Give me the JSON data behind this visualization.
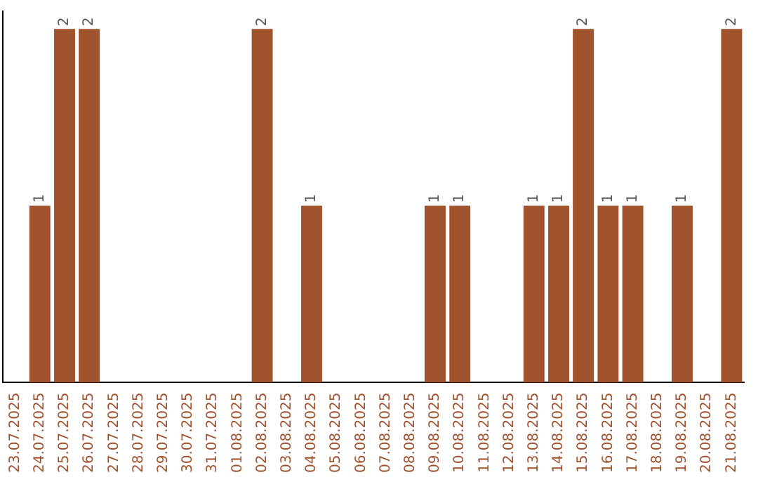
{
  "chart_data": {
    "type": "bar",
    "categories": [
      "23.07.2025",
      "24.07.2025",
      "25.07.2025",
      "26.07.2025",
      "27.07.2025",
      "28.07.2025",
      "29.07.2025",
      "30.07.2025",
      "31.07.2025",
      "01.08.2025",
      "02.08.2025",
      "03.08.2025",
      "04.08.2025",
      "05.08.2025",
      "06.08.2025",
      "07.08.2025",
      "08.08.2025",
      "09.08.2025",
      "10.08.2025",
      "11.08.2025",
      "12.08.2025",
      "13.08.2025",
      "14.08.2025",
      "15.08.2025",
      "16.08.2025",
      "17.08.2025",
      "18.08.2025",
      "19.08.2025",
      "20.08.2025",
      "21.08.2025"
    ],
    "values": [
      0,
      1,
      2,
      2,
      0,
      0,
      0,
      0,
      0,
      0,
      2,
      0,
      1,
      0,
      0,
      0,
      0,
      1,
      1,
      0,
      0,
      1,
      1,
      2,
      1,
      1,
      0,
      1,
      0,
      2
    ],
    "value_labels": [
      null,
      "1",
      "2",
      "2",
      null,
      null,
      null,
      null,
      null,
      null,
      "2",
      null,
      "1",
      null,
      null,
      null,
      null,
      "1",
      "1",
      null,
      null,
      "1",
      "1",
      "2",
      "1",
      "1",
      null,
      "1",
      null,
      "2"
    ],
    "color": "#a0522d",
    "ylim": [
      0,
      2.1
    ],
    "tick_labels": "x",
    "grid": false,
    "legend": false
  }
}
